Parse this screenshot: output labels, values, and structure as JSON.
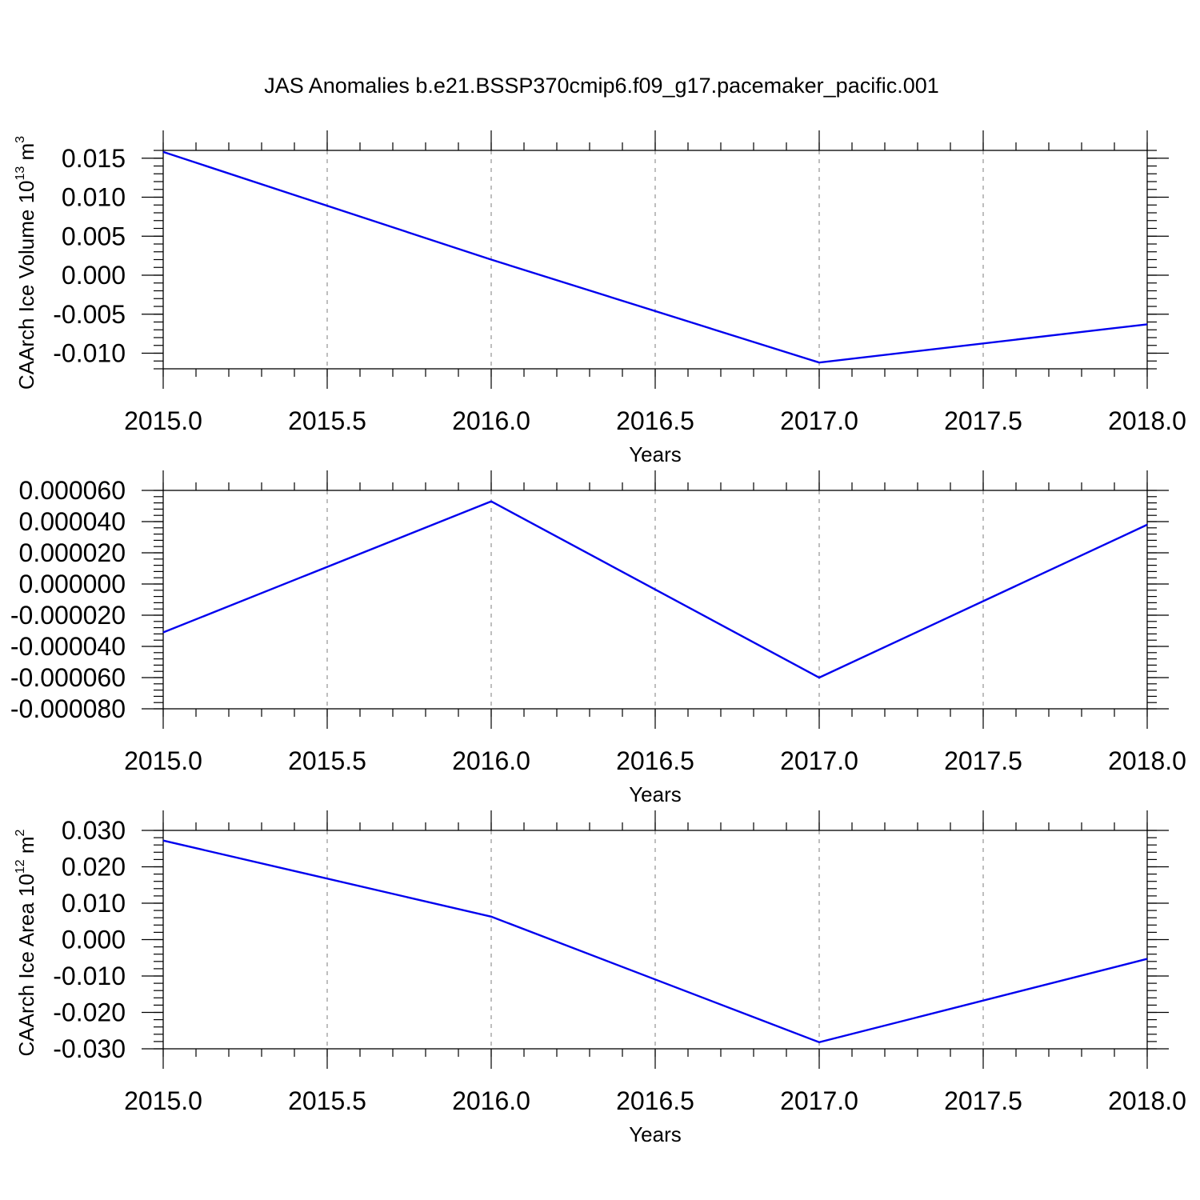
{
  "figure_title": "JAS Anomalies b.e21.BSSP370cmip6.f09_g17.pacemaker_pacific.001",
  "colors": {
    "series": "#0000ee",
    "grid": "#8a8a8a",
    "frame": "#000000"
  },
  "chart_data": [
    {
      "type": "line",
      "title": "",
      "xlabel": "Years",
      "ylabel": {
        "text": "CAArch Ice Volume 10",
        "exp": "13",
        "unit": " m",
        "unit_exp": "3"
      },
      "x": [
        2015,
        2016,
        2017,
        2018
      ],
      "series": [
        {
          "values": [
            0.0158,
            0.002,
            -0.0112,
            -0.0063
          ]
        }
      ],
      "xlim": [
        2015,
        2018
      ],
      "ylim": [
        -0.012,
        0.016
      ],
      "xticks": [
        2015.0,
        2015.5,
        2016.0,
        2016.5,
        2017.0,
        2017.5,
        2018.0
      ],
      "xtick_labels": [
        "2015.0",
        "2015.5",
        "2016.0",
        "2016.5",
        "2017.0",
        "2017.5",
        "2018.0"
      ],
      "yticks": [
        0.015,
        0.01,
        0.005,
        0.0,
        -0.005,
        -0.01
      ],
      "ytick_labels": [
        "0.015",
        "0.010",
        "0.005",
        "0.000",
        "-0.005",
        "-0.010"
      ],
      "x_minor_step": 0.1,
      "y_minor_step": 0.001,
      "grid": "vertical-dashed"
    },
    {
      "type": "line",
      "title": "",
      "xlabel": "Years",
      "ylabel": null,
      "x": [
        2015,
        2016,
        2017,
        2018
      ],
      "series": [
        {
          "values": [
            -3.1e-05,
            5.3e-05,
            -6e-05,
            3.8e-05
          ]
        }
      ],
      "xlim": [
        2015,
        2018
      ],
      "ylim": [
        -8e-05,
        6e-05
      ],
      "xticks": [
        2015.0,
        2015.5,
        2016.0,
        2016.5,
        2017.0,
        2017.5,
        2018.0
      ],
      "xtick_labels": [
        "2015.0",
        "2015.5",
        "2016.0",
        "2016.5",
        "2017.0",
        "2017.5",
        "2018.0"
      ],
      "yticks": [
        6e-05,
        4e-05,
        2e-05,
        0.0,
        -2e-05,
        -4e-05,
        -6e-05,
        -8e-05
      ],
      "ytick_labels": [
        "0.000060",
        "0.000040",
        "0.000020",
        "0.000000",
        "-0.000020",
        "-0.000040",
        "-0.000060",
        "-0.000080"
      ],
      "x_minor_step": 0.1,
      "y_minor_step": 4e-06,
      "grid": "vertical-dashed"
    },
    {
      "type": "line",
      "title": "",
      "xlabel": "Years",
      "ylabel": {
        "text": "CAArch Ice Area 10",
        "exp": "12",
        "unit": " m",
        "unit_exp": "2"
      },
      "x": [
        2015,
        2016,
        2017,
        2018
      ],
      "series": [
        {
          "values": [
            0.0272,
            0.0063,
            -0.0282,
            -0.0053
          ]
        }
      ],
      "xlim": [
        2015,
        2018
      ],
      "ylim": [
        -0.03,
        0.03
      ],
      "xticks": [
        2015.0,
        2015.5,
        2016.0,
        2016.5,
        2017.0,
        2017.5,
        2018.0
      ],
      "xtick_labels": [
        "2015.0",
        "2015.5",
        "2016.0",
        "2016.5",
        "2017.0",
        "2017.5",
        "2018.0"
      ],
      "yticks": [
        0.03,
        0.02,
        0.01,
        0.0,
        -0.01,
        -0.02,
        -0.03
      ],
      "ytick_labels": [
        "0.030",
        "0.020",
        "0.010",
        "0.000",
        "-0.010",
        "-0.020",
        "-0.030"
      ],
      "x_minor_step": 0.1,
      "y_minor_step": 0.002,
      "grid": "vertical-dashed"
    }
  ]
}
